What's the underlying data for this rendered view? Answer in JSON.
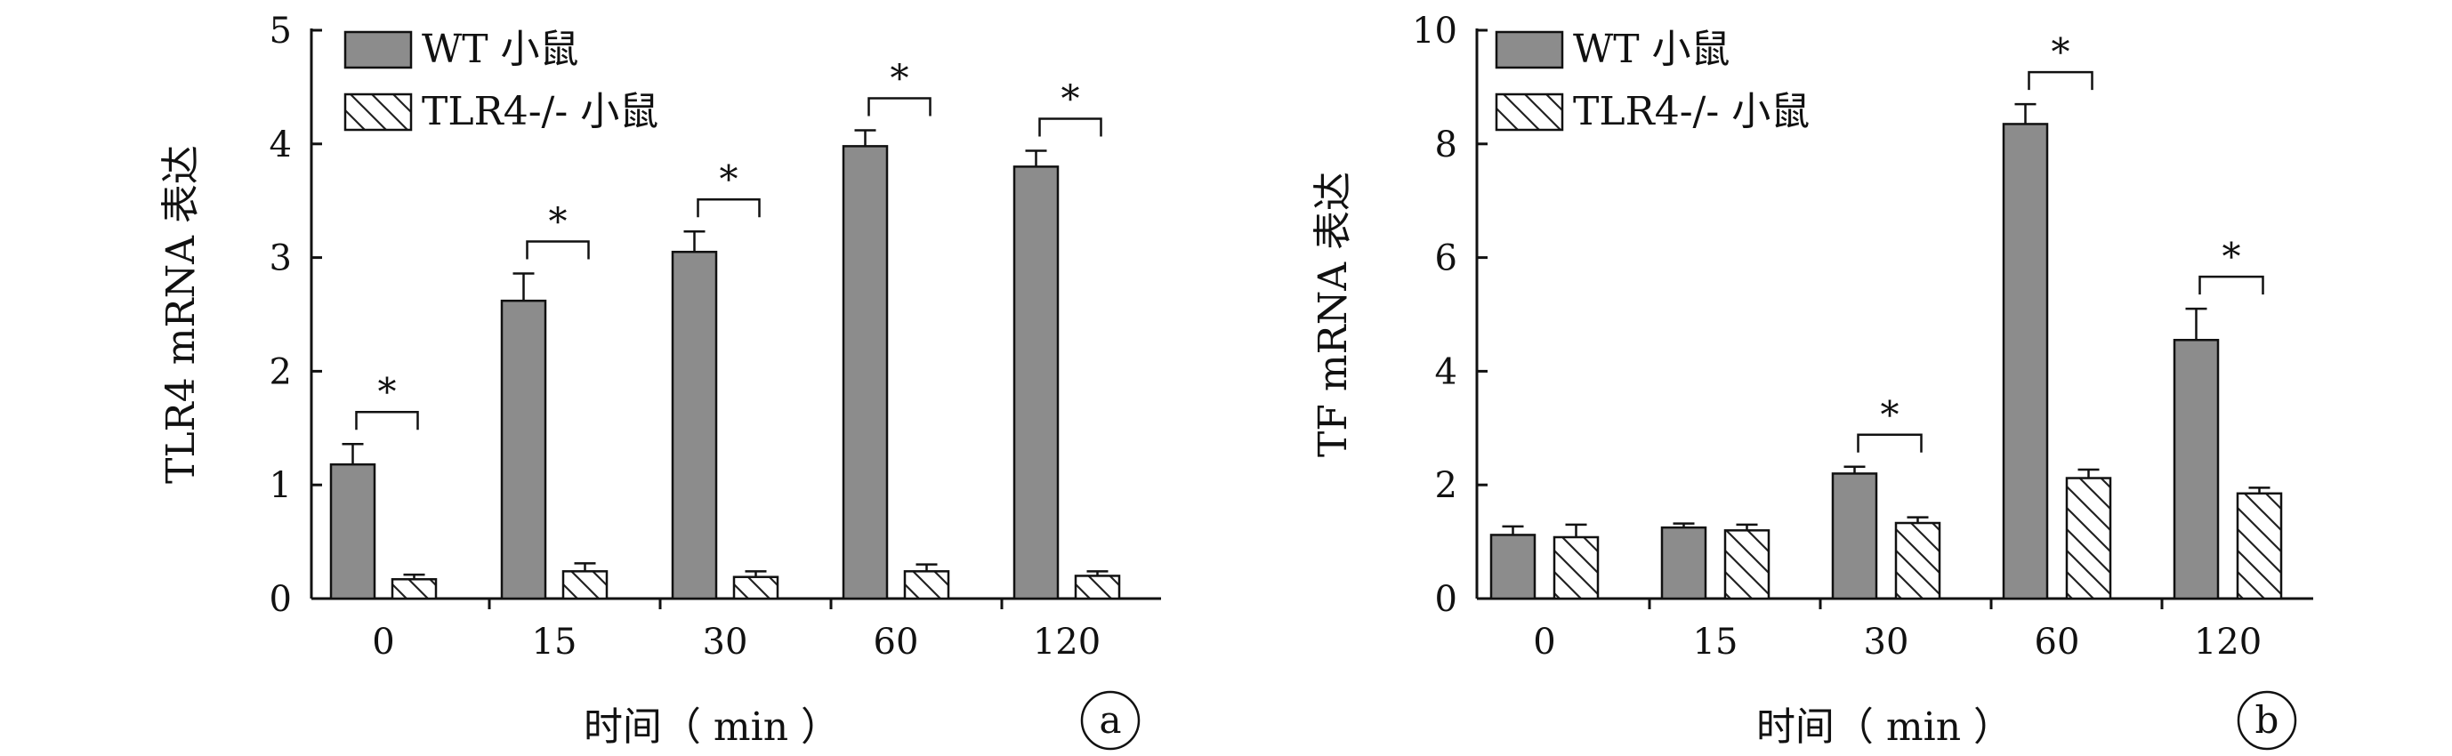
{
  "chart_data": [
    {
      "type": "bar",
      "panel_label": "a",
      "ylabel": "TLR4 mRNA 表达",
      "xlabel": "时间（ min ）",
      "categories": [
        "0",
        "15",
        "30",
        "60",
        "120"
      ],
      "ylim": [
        0,
        5
      ],
      "yticks": [
        "0",
        "1",
        "2",
        "3",
        "4",
        "5"
      ],
      "series": [
        {
          "name": "WT 小鼠",
          "values": [
            1.18,
            2.62,
            3.05,
            3.98,
            3.8
          ],
          "errors": [
            0.18,
            0.24,
            0.18,
            0.14,
            0.14
          ],
          "color": "#8c8c8c",
          "pattern": "solid"
        },
        {
          "name": "TLR4-/- 小鼠",
          "values": [
            0.17,
            0.24,
            0.19,
            0.24,
            0.2
          ],
          "errors": [
            0.04,
            0.07,
            0.05,
            0.06,
            0.04
          ],
          "color": "#ffffff",
          "pattern": "hatch"
        }
      ],
      "significance": [
        "*",
        "*",
        "*",
        "*",
        "*"
      ],
      "legend_position": "top-left"
    },
    {
      "type": "bar",
      "panel_label": "b",
      "ylabel": "TF mRNA 表达",
      "xlabel": "时间（ min ）",
      "categories": [
        "0",
        "15",
        "30",
        "60",
        "120"
      ],
      "ylim": [
        0,
        10
      ],
      "yticks": [
        "0",
        "2",
        "4",
        "6",
        "8",
        "10"
      ],
      "series": [
        {
          "name": "WT 小鼠",
          "values": [
            1.12,
            1.25,
            2.2,
            8.35,
            4.55
          ],
          "errors": [
            0.15,
            0.07,
            0.12,
            0.35,
            0.55
          ],
          "color": "#8c8c8c",
          "pattern": "solid"
        },
        {
          "name": "TLR4-/- 小鼠",
          "values": [
            1.08,
            1.2,
            1.33,
            2.12,
            1.85
          ],
          "errors": [
            0.22,
            0.1,
            0.1,
            0.15,
            0.1
          ],
          "color": "#ffffff",
          "pattern": "hatch"
        }
      ],
      "significance": [
        "",
        "",
        "*",
        "*",
        "*"
      ],
      "legend_position": "top-left"
    }
  ]
}
